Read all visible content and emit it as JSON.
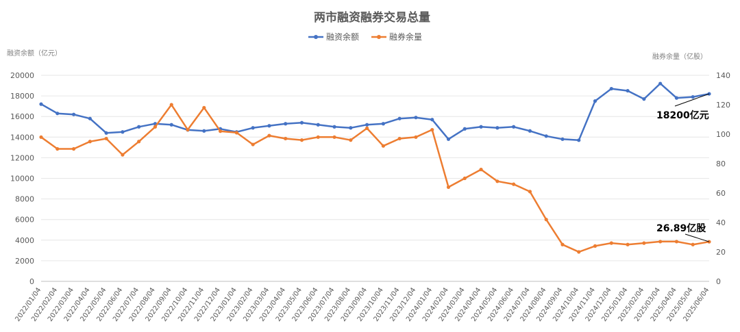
{
  "colors": {
    "margin_balance": "#4472C4",
    "short_volume": "#ED7D31",
    "grid": "#E6E6E6"
  },
  "chart_data": {
    "type": "line",
    "title": "两市融资融券交易总量",
    "ylabel": "融资余额（亿元）",
    "y2label": "融券余量（亿股）",
    "ylim": [
      0,
      20000
    ],
    "y2lim": [
      0,
      140
    ],
    "yticks": [
      0,
      2000,
      4000,
      6000,
      8000,
      10000,
      12000,
      14000,
      16000,
      18000,
      20000
    ],
    "y2ticks": [
      0,
      20,
      40,
      60,
      80,
      100,
      120,
      140
    ],
    "x": [
      "2022/01/04",
      "2022/02/04",
      "2022/03/04",
      "2022/04/04",
      "2022/05/04",
      "2022/06/04",
      "2022/07/04",
      "2022/08/04",
      "2022/09/04",
      "2022/10/04",
      "2022/11/04",
      "2022/12/04",
      "2023/01/04",
      "2023/02/04",
      "2023/03/04",
      "2023/04/04",
      "2023/05/04",
      "2023/06/04",
      "2023/07/04",
      "2023/08/04",
      "2023/09/04",
      "2023/10/04",
      "2023/11/04",
      "2023/12/04",
      "2024/01/04",
      "2024/02/04",
      "2024/03/04",
      "2024/04/04",
      "2024/05/04",
      "2024/06/04",
      "2024/07/04",
      "2024/08/04",
      "2024/09/04",
      "2024/10/04",
      "2024/11/04",
      "2024/12/04",
      "2025/01/04",
      "2025/02/04",
      "2025/03/04",
      "2025/04/04",
      "2025/05/04",
      "2025/06/04"
    ],
    "legend": "top-center",
    "grid": true,
    "series": [
      {
        "name": "融资余额",
        "axis": "left",
        "values": [
          17200,
          16300,
          16200,
          15800,
          14400,
          14500,
          15000,
          15300,
          15200,
          14700,
          14600,
          14800,
          14500,
          14900,
          15100,
          15300,
          15400,
          15200,
          15000,
          14900,
          15200,
          15300,
          15800,
          15900,
          15700,
          13800,
          14800,
          15000,
          14900,
          15000,
          14600,
          14100,
          13800,
          13700,
          17500,
          18700,
          18500,
          17700,
          19200,
          17800,
          17900,
          18200
        ]
      },
      {
        "name": "融券余量",
        "axis": "right",
        "values": [
          98,
          90,
          90,
          95,
          97,
          86,
          95,
          105,
          120,
          103,
          118,
          102,
          101,
          93,
          99,
          97,
          96,
          98,
          98,
          96,
          104,
          92,
          97,
          98,
          103,
          64,
          70,
          76,
          68,
          66,
          61,
          42,
          25,
          20,
          24,
          26,
          25,
          26,
          27,
          27,
          25,
          26.89
        ]
      }
    ],
    "annotations": [
      {
        "text": "18200亿元",
        "series": "融资余额"
      },
      {
        "text": "26.89亿股",
        "series": "融券余量"
      }
    ]
  }
}
